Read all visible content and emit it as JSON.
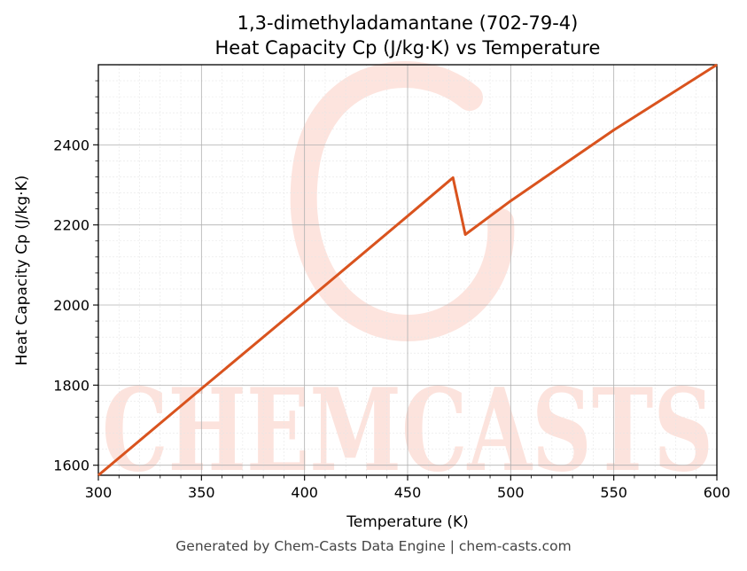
{
  "chart_data": {
    "type": "line",
    "title": "1,3-dimethyladamantane (702-79-4)",
    "subtitle": "Heat Capacity Cp (J/kg·K) vs Temperature",
    "xlabel": "Temperature (K)",
    "ylabel": "Heat Capacity Cp (J/kg·K)",
    "xlim": [
      300,
      600
    ],
    "ylim": [
      1575,
      2600
    ],
    "xticks": [
      300,
      350,
      400,
      450,
      500,
      550,
      600
    ],
    "yticks": [
      1600,
      1800,
      2000,
      2200,
      2400
    ],
    "grid": true,
    "series": [
      {
        "color": "#d9531e",
        "x": [
          300,
          350,
          400,
          450,
          472,
          478,
          500,
          550,
          600
        ],
        "y": [
          1575,
          1791,
          2006,
          2222,
          2318,
          2176,
          2260,
          2437,
          2600
        ]
      }
    ],
    "watermark": "CHEMCASTS"
  },
  "footer": "Generated by Chem-Casts Data Engine | chem-casts.com"
}
